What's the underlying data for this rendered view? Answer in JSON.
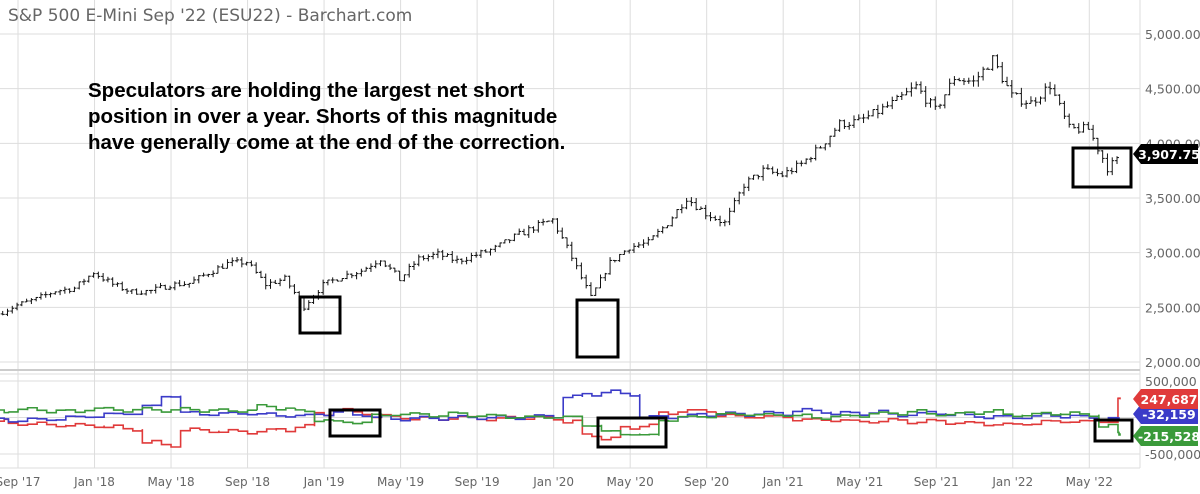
{
  "header": {
    "title": "S&P 500 E-Mini Sep '22 (ESU22) - Barchart.com"
  },
  "annotation": {
    "lines": [
      "Speculators are holding the largest net short",
      "position in over a year. Shorts of this magnitude",
      "have generally come at the end of the correction."
    ]
  },
  "chart_data": [
    {
      "type": "ohlc",
      "x_tick_labels": [
        "Sep '17",
        "Jan '18",
        "May '18",
        "Sep '18",
        "Jan '19",
        "May '19",
        "Sep '19",
        "Jan '20",
        "May '20",
        "Sep '20",
        "Jan '21",
        "May '21",
        "Sep '21",
        "Jan '22",
        "May '22"
      ],
      "y_tick_labels": [
        "5,000.00",
        "4,500.00",
        "4,000.00",
        "3,500.00",
        "3,000.00",
        "2,500.00",
        "2,000.00"
      ],
      "ylim": [
        2000,
        5000
      ],
      "grid": true,
      "x_months": [
        "2017-08",
        "2017-09",
        "2017-10",
        "2017-11",
        "2017-12",
        "2018-01",
        "2018-02",
        "2018-03",
        "2018-04",
        "2018-05",
        "2018-06",
        "2018-07",
        "2018-08",
        "2018-09",
        "2018-10",
        "2018-11",
        "2018-12",
        "2019-01",
        "2019-02",
        "2019-03",
        "2019-04",
        "2019-05",
        "2019-06",
        "2019-07",
        "2019-08",
        "2019-09",
        "2019-10",
        "2019-11",
        "2019-12",
        "2020-01",
        "2020-02",
        "2020-03",
        "2020-04",
        "2020-05",
        "2020-06",
        "2020-07",
        "2020-08",
        "2020-09",
        "2020-10",
        "2020-11",
        "2020-12",
        "2021-01",
        "2021-02",
        "2021-03",
        "2021-04",
        "2021-05",
        "2021-06",
        "2021-07",
        "2021-08",
        "2021-09",
        "2021-10",
        "2021-11",
        "2021-12",
        "2022-01",
        "2022-02",
        "2022-03",
        "2022-04",
        "2022-05",
        "2022-06",
        "2022-07"
      ],
      "close": [
        2440,
        2520,
        2575,
        2650,
        2675,
        2820,
        2710,
        2640,
        2650,
        2705,
        2720,
        2815,
        2900,
        2915,
        2710,
        2760,
        2510,
        2705,
        2785,
        2835,
        2945,
        2755,
        2945,
        2985,
        2925,
        2980,
        3040,
        3145,
        3230,
        3300,
        2955,
        2585,
        2910,
        3050,
        3090,
        3270,
        3500,
        3360,
        3270,
        3620,
        3750,
        3710,
        3810,
        3970,
        4180,
        4200,
        4290,
        4390,
        4520,
        4300,
        4600,
        4560,
        4770,
        4430,
        4370,
        4530,
        4130,
        4130,
        3780,
        3907.75
      ],
      "last_price_label": "3,907.75",
      "color": "#000000"
    },
    {
      "type": "line",
      "y_tick_labels": [
        "500,000",
        "-500,000"
      ],
      "ylim": [
        -500000,
        500000
      ],
      "series": [
        {
          "color": "#e03a3a",
          "values": [
            -50000,
            -80000,
            -90000,
            -100000,
            -110000,
            -110000,
            -130000,
            -160000,
            -340000,
            -380000,
            -170000,
            -180000,
            -190000,
            -200000,
            -180000,
            -170000,
            -120000,
            50000,
            100000,
            60000,
            20000,
            0,
            -10000,
            -20000,
            0,
            -10000,
            -20000,
            -10000,
            0,
            -20000,
            -50000,
            -250000,
            -280000,
            -150000,
            -100000,
            50000,
            100000,
            80000,
            40000,
            0,
            20000,
            0,
            -20000,
            -40000,
            -30000,
            -60000,
            -50000,
            -40000,
            -60000,
            -50000,
            -70000,
            -80000,
            -90000,
            -100000,
            -80000,
            -60000,
            -50000,
            -60000,
            -50000,
            247687
          ],
          "end_label": "247,687"
        },
        {
          "color": "#3b3bc8",
          "values": [
            -30000,
            -40000,
            -30000,
            -20000,
            0,
            20000,
            40000,
            60000,
            150000,
            300000,
            60000,
            50000,
            50000,
            60000,
            40000,
            30000,
            20000,
            50000,
            70000,
            40000,
            0,
            -20000,
            -10000,
            -10000,
            0,
            0,
            0,
            0,
            10000,
            20000,
            280000,
            320000,
            350000,
            320000,
            0,
            10000,
            20000,
            40000,
            50000,
            40000,
            60000,
            50000,
            100000,
            80000,
            60000,
            50000,
            80000,
            30000,
            50000,
            60000,
            50000,
            20000,
            10000,
            0,
            10000,
            30000,
            20000,
            0,
            -10000,
            -32159
          ],
          "end_label": "-32,159"
        },
        {
          "color": "#3a9a3a",
          "values": [
            80000,
            100000,
            110000,
            90000,
            80000,
            120000,
            110000,
            100000,
            110000,
            100000,
            110000,
            100000,
            90000,
            100000,
            150000,
            130000,
            80000,
            -30000,
            -70000,
            -60000,
            20000,
            50000,
            40000,
            30000,
            50000,
            30000,
            20000,
            10000,
            0,
            10000,
            0,
            -100000,
            -200000,
            -220000,
            -250000,
            -30000,
            0,
            20000,
            40000,
            50000,
            30000,
            40000,
            20000,
            0,
            10000,
            30000,
            50000,
            60000,
            80000,
            50000,
            40000,
            70000,
            80000,
            40000,
            30000,
            60000,
            50000,
            40000,
            -120000,
            -215528
          ],
          "end_label": "-215,528"
        }
      ]
    }
  ]
}
